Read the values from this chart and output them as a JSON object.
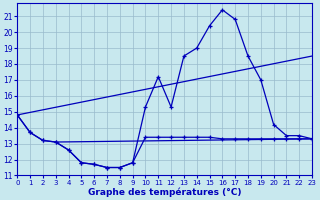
{
  "title": "Graphe des températures (°C)",
  "bg_color": "#c8e8ee",
  "line_color": "#0000bb",
  "grid_color": "#99bbcc",
  "xlim": [
    0,
    23
  ],
  "ylim": [
    11,
    21.8
  ],
  "xticks": [
    0,
    1,
    2,
    3,
    4,
    5,
    6,
    7,
    8,
    9,
    10,
    11,
    12,
    13,
    14,
    15,
    16,
    17,
    18,
    19,
    20,
    21,
    22,
    23
  ],
  "yticks": [
    11,
    12,
    13,
    14,
    15,
    16,
    17,
    18,
    19,
    20,
    21
  ],
  "series": [
    {
      "x": [
        0,
        1,
        2,
        3,
        4,
        5,
        6,
        7,
        8,
        9,
        10,
        11,
        12,
        13,
        14,
        15,
        16,
        17,
        18,
        19,
        20,
        21,
        22,
        23
      ],
      "y": [
        14.8,
        13.7,
        13.2,
        13.1,
        12.6,
        11.8,
        11.7,
        11.5,
        11.5,
        11.8,
        15.3,
        17.2,
        15.3,
        18.5,
        19.0,
        20.4,
        21.4,
        20.8,
        18.5,
        17.0,
        14.2,
        13.5,
        13.5,
        13.3
      ],
      "marker": true
    },
    {
      "x": [
        0,
        1,
        2,
        3,
        4,
        5,
        6,
        7,
        8,
        9,
        10,
        11,
        12,
        13,
        14,
        15,
        16,
        17,
        18,
        19,
        20,
        21,
        22,
        23
      ],
      "y": [
        14.8,
        13.7,
        13.2,
        13.1,
        12.6,
        11.8,
        11.7,
        11.5,
        11.5,
        11.8,
        13.4,
        13.4,
        13.4,
        13.4,
        13.4,
        13.4,
        13.3,
        13.3,
        13.3,
        13.3,
        13.3,
        13.3,
        13.3,
        13.3
      ],
      "marker": true
    },
    {
      "x": [
        0,
        23
      ],
      "y": [
        14.8,
        18.5
      ],
      "marker": false
    },
    {
      "x": [
        3,
        23
      ],
      "y": [
        13.1,
        13.3
      ],
      "marker": false
    }
  ]
}
